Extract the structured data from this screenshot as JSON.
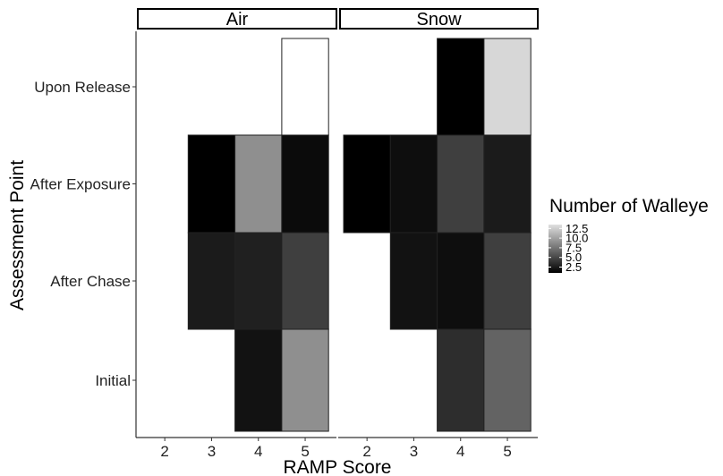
{
  "chart_data": {
    "type": "heatmap",
    "title": "",
    "xlabel": "RAMP Score",
    "ylabel": "Assessment Point",
    "x_categories": [
      "2",
      "3",
      "4",
      "5"
    ],
    "y_categories": [
      "Initial",
      "After Chase",
      "After Exposure",
      "Upon Release"
    ],
    "facets": [
      {
        "name": "Air",
        "cells": [
          {
            "x": "4",
            "y": "Initial",
            "value": 2
          },
          {
            "x": "5",
            "y": "Initial",
            "value": 9
          },
          {
            "x": "3",
            "y": "After Chase",
            "value": 2.5
          },
          {
            "x": "4",
            "y": "After Chase",
            "value": 2.8
          },
          {
            "x": "5",
            "y": "After Chase",
            "value": 4.5
          },
          {
            "x": "3",
            "y": "After Exposure",
            "value": 1
          },
          {
            "x": "4",
            "y": "After Exposure",
            "value": 9
          },
          {
            "x": "5",
            "y": "After Exposure",
            "value": 1.6
          },
          {
            "x": "5",
            "y": "Upon Release",
            "value": 15
          }
        ]
      },
      {
        "name": "Snow",
        "cells": [
          {
            "x": "4",
            "y": "Initial",
            "value": 3.5
          },
          {
            "x": "5",
            "y": "Initial",
            "value": 6.5
          },
          {
            "x": "3",
            "y": "After Chase",
            "value": 2
          },
          {
            "x": "4",
            "y": "After Chase",
            "value": 1.8
          },
          {
            "x": "5",
            "y": "After Chase",
            "value": 4.5
          },
          {
            "x": "2",
            "y": "After Exposure",
            "value": 1
          },
          {
            "x": "3",
            "y": "After Exposure",
            "value": 1.8
          },
          {
            "x": "4",
            "y": "After Exposure",
            "value": 4.5
          },
          {
            "x": "5",
            "y": "After Exposure",
            "value": 2.5
          },
          {
            "x": "4",
            "y": "Upon Release",
            "value": 1
          },
          {
            "x": "5",
            "y": "Upon Release",
            "value": 13
          }
        ]
      }
    ],
    "legend": {
      "title": "Number of Walleye",
      "ticks": [
        "2.5",
        "5.0",
        "7.5",
        "10.0",
        "12.5"
      ],
      "tick_values": [
        2.5,
        5,
        7.5,
        10,
        12.5
      ],
      "range": [
        1,
        13.5
      ],
      "placement": "right"
    },
    "colors": {
      "low": "#000000",
      "high": "#e0e0e0",
      "above_range": "#ffffff",
      "border": "#222222"
    }
  }
}
